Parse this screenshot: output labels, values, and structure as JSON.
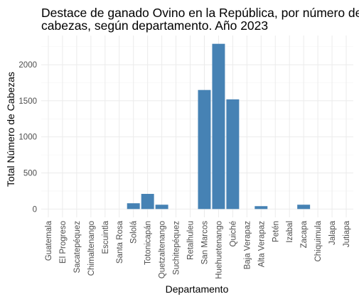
{
  "chart_data": {
    "type": "bar",
    "title_line1": "Destace de ganado Ovino en la República, por número de",
    "title_line2": "cabezas, según departamento. Año 2023",
    "xlabel": "Departamento",
    "ylabel": "Total Número de Cabezas",
    "categories": [
      "Guatemala",
      "El Progreso",
      "Sacatepéquez",
      "Chimaltenango",
      "Escuintla",
      "Santa Rosa",
      "Sololá",
      "Totonicapán",
      "Quetzaltenango",
      "Suchitepéquez",
      "Retalhuleu",
      "San Marcos",
      "Huehuetenango",
      "Quiché",
      "Baja Verapaz",
      "Alta Verapaz",
      "Petén",
      "Izabal",
      "Zacapa",
      "Chiquimula",
      "Jalapa",
      "Jutiapa"
    ],
    "values": [
      0,
      0,
      0,
      0,
      0,
      0,
      80,
      210,
      60,
      0,
      0,
      1650,
      2290,
      1520,
      0,
      40,
      0,
      0,
      60,
      0,
      0,
      0
    ],
    "yticks": [
      0,
      500,
      1000,
      1500,
      2000
    ],
    "ytick_labels": [
      "0",
      "500",
      "1000",
      "1500",
      "2000"
    ],
    "ylim": [
      -115,
      2405
    ],
    "grid": true,
    "bar_color": "#4682B4"
  }
}
